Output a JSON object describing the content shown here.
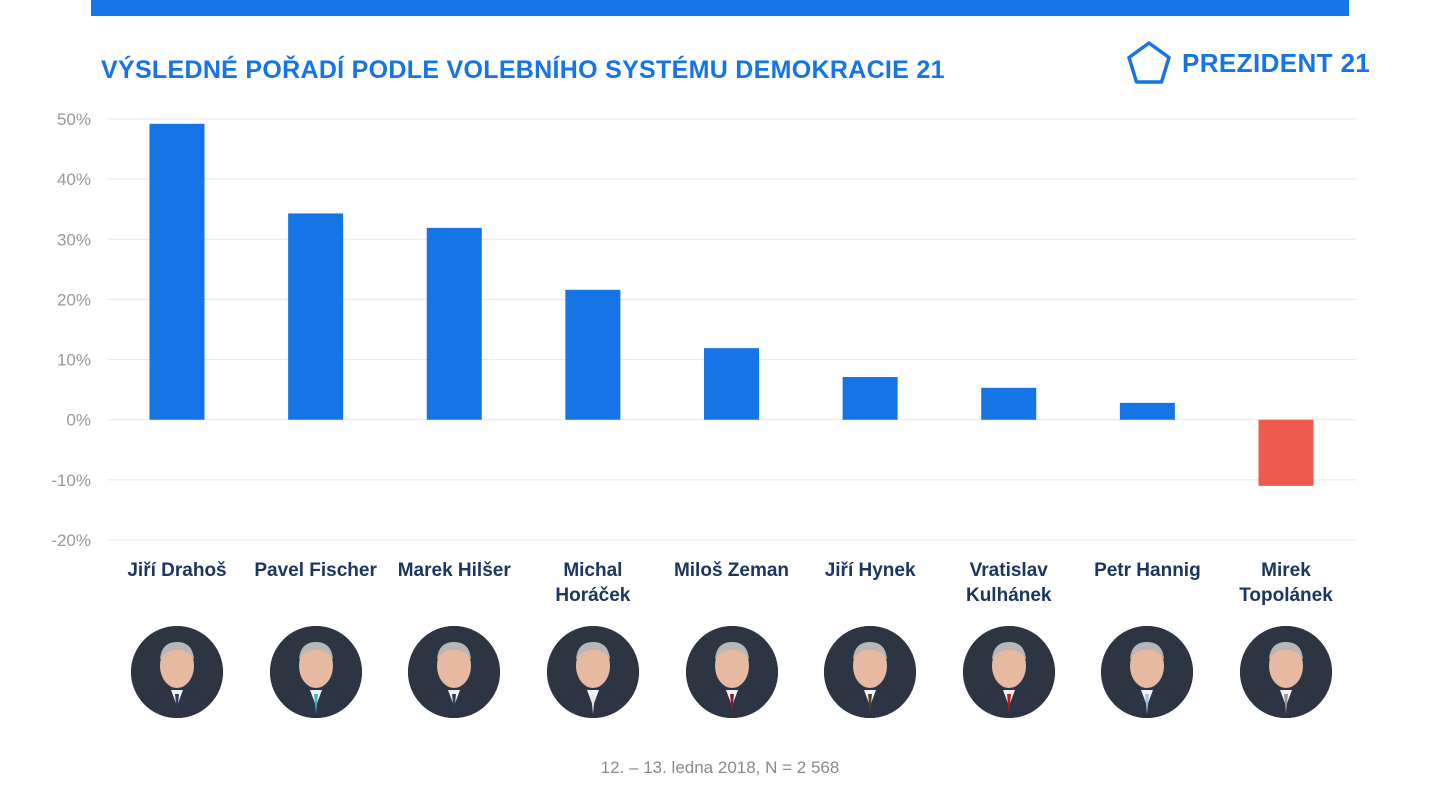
{
  "header": {
    "title": "VÝSLEDNÉ POŘADÍ PODLE VOLEBNÍHO SYSTÉMU DEMOKRACIE 21",
    "logo_text": "PREZIDENT 21",
    "logo_icon": "pentagon-icon",
    "accent_color": "#1574e6"
  },
  "chart_data": {
    "type": "bar",
    "categories": [
      "Jiří Drahoš",
      "Pavel Fischer",
      "Marek Hilšer",
      "Michal Horáček",
      "Miloš Zeman",
      "Jiří Hynek",
      "Vratislav Kulhánek",
      "Petr Hannig",
      "Mirek Topolánek"
    ],
    "category_lines": [
      [
        "Jiří Drahoš"
      ],
      [
        "Pavel Fischer"
      ],
      [
        "Marek Hilšer"
      ],
      [
        "Michal",
        "Horáček"
      ],
      [
        "Miloš Zeman"
      ],
      [
        "Jiří Hynek"
      ],
      [
        "Vratislav",
        "Kulhánek"
      ],
      [
        "Petr Hannig"
      ],
      [
        "Mirek",
        "Topolánek"
      ]
    ],
    "values": [
      49.2,
      34.3,
      31.9,
      21.6,
      11.9,
      7.1,
      5.3,
      2.8,
      -11.0
    ],
    "ylim": [
      -20,
      50
    ],
    "yticks": [
      50,
      40,
      30,
      20,
      10,
      0,
      -10,
      -20
    ],
    "ytick_labels": [
      "50%",
      "40%",
      "30%",
      "20%",
      "10%",
      "0%",
      "-10%",
      "-20%"
    ],
    "title": "",
    "xlabel": "",
    "ylabel": "",
    "grid": true,
    "positive_color": "#1574e6",
    "negative_color": "#ee5a4b"
  },
  "footnote": "12. – 13. ledna 2018, N = 2 568"
}
